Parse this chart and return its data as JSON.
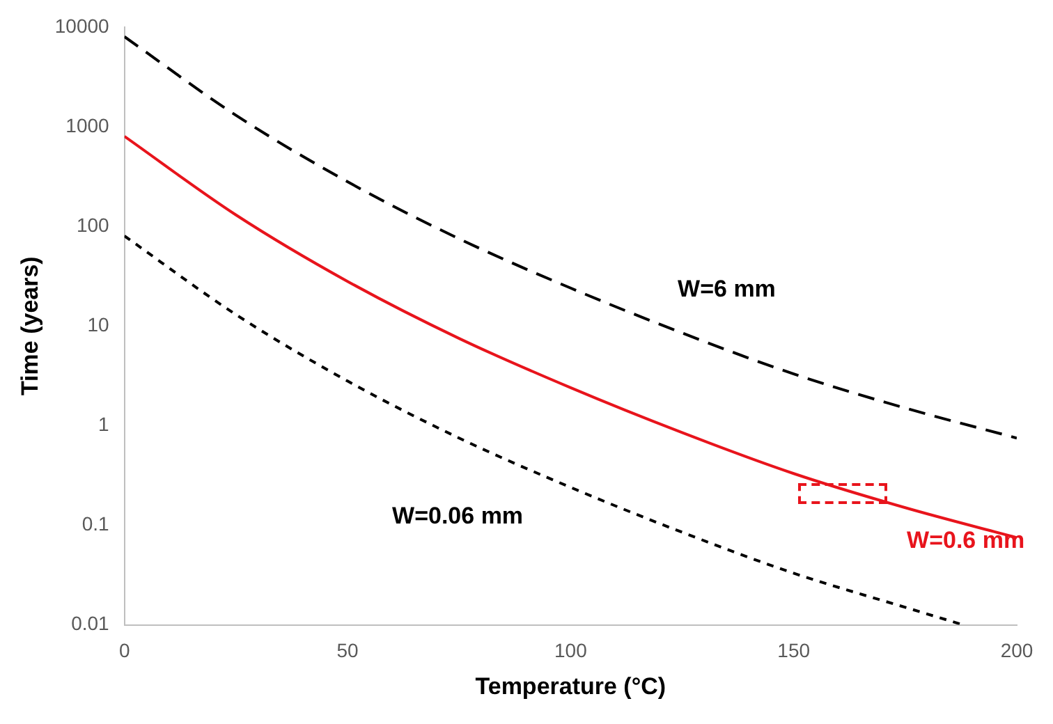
{
  "chart_data": {
    "type": "line",
    "xlabel": "Temperature (°C)",
    "ylabel": "Time (years)",
    "log": "y",
    "xlim": [
      0,
      200
    ],
    "xticks": [
      0,
      50,
      100,
      150,
      200
    ],
    "ylim": [
      0.01,
      10000
    ],
    "yticks": [
      0.01,
      0.1,
      1,
      10,
      100,
      1000,
      10000
    ],
    "grid": false,
    "legend": false,
    "marker": "none",
    "series": [
      {
        "name": "W=6 mm",
        "color": "#000000",
        "line_style": "dashed",
        "x": [
          0,
          25,
          50,
          75,
          100,
          125,
          150,
          175,
          200
        ],
        "values": [
          8000,
          1300,
          280,
          75,
          24,
          8.5,
          3.3,
          1.5,
          0.75
        ]
      },
      {
        "name": "W=0.6 mm",
        "color": "#e8141c",
        "line_style": "solid",
        "x": [
          0,
          25,
          50,
          75,
          100,
          125,
          150,
          175,
          200
        ],
        "values": [
          800,
          130,
          28,
          7.5,
          2.4,
          0.85,
          0.33,
          0.15,
          0.075
        ]
      },
      {
        "name": "W=0.06 mm",
        "color": "#000000",
        "line_style": "dotted",
        "x": [
          0,
          25,
          50,
          75,
          100,
          125,
          150,
          175,
          188
        ],
        "values": [
          80,
          13,
          2.8,
          0.75,
          0.24,
          0.085,
          0.033,
          0.015,
          0.01
        ]
      }
    ]
  }
}
